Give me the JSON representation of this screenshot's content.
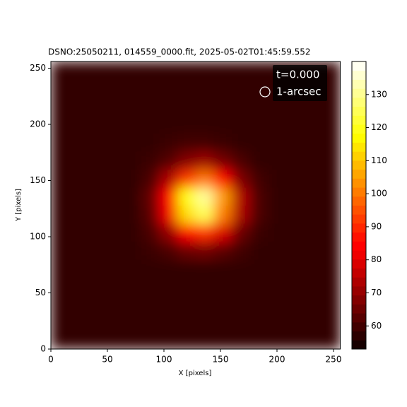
{
  "chart_data": {
    "type": "heatmap",
    "title": "DSNO:25050211,  014559_0000.fit, 2025-05-02T01:45:59.552",
    "x_label": "X [pixels]",
    "y_label": "Y [pixels]",
    "time_label": "t=0.000",
    "marker_label": "1-arcsec",
    "colormap": "hot",
    "xlim": [
      0,
      256
    ],
    "ylim": [
      0,
      256
    ],
    "xticks": [
      0,
      50,
      100,
      150,
      200,
      250
    ],
    "yticks": [
      0,
      50,
      100,
      150,
      200,
      250
    ],
    "cell_size": 16,
    "clim": [
      53,
      140
    ],
    "colorbar_ticks": [
      60,
      70,
      80,
      90,
      100,
      110,
      120,
      130
    ],
    "z": [
      [
        58,
        58,
        58,
        58,
        58,
        58,
        58,
        58,
        58,
        58,
        58,
        58,
        58,
        58,
        58,
        58
      ],
      [
        58,
        58,
        58,
        58,
        58,
        58,
        58,
        58,
        58,
        58,
        58,
        58,
        58,
        58,
        58,
        58
      ],
      [
        58,
        58,
        58,
        58,
        58,
        58,
        58,
        58,
        58,
        58,
        58,
        58,
        58,
        58,
        58,
        58
      ],
      [
        58,
        58,
        58,
        58,
        58,
        58,
        58,
        58,
        58,
        58,
        58,
        58,
        58,
        58,
        58,
        58
      ],
      [
        58,
        58,
        58,
        58,
        58,
        58,
        58,
        58,
        58,
        58,
        58,
        58,
        58,
        58,
        58,
        58
      ],
      [
        58,
        58,
        58,
        58,
        58,
        59,
        61,
        65,
        66,
        63,
        60,
        58,
        58,
        58,
        58,
        58
      ],
      [
        58,
        58,
        58,
        58,
        58,
        61,
        70,
        85,
        91,
        79,
        65,
        59,
        58,
        58,
        58,
        58
      ],
      [
        58,
        58,
        58,
        58,
        58,
        63,
        82,
        113,
        125,
        101,
        73,
        61,
        58,
        58,
        58,
        58
      ],
      [
        58,
        58,
        58,
        58,
        58,
        64,
        84,
        118,
        131,
        105,
        74,
        61,
        58,
        58,
        58,
        58
      ],
      [
        58,
        58,
        58,
        58,
        58,
        61,
        73,
        92,
        100,
        85,
        67,
        60,
        58,
        58,
        58,
        58
      ],
      [
        58,
        58,
        58,
        58,
        58,
        59,
        62,
        68,
        71,
        66,
        61,
        58,
        58,
        58,
        58,
        58
      ],
      [
        58,
        58,
        58,
        58,
        58,
        58,
        59,
        60,
        60,
        59,
        58,
        58,
        58,
        58,
        58,
        58
      ],
      [
        58,
        58,
        58,
        58,
        58,
        58,
        58,
        58,
        58,
        58,
        58,
        58,
        58,
        58,
        58,
        58
      ],
      [
        58,
        58,
        58,
        58,
        58,
        58,
        58,
        58,
        58,
        58,
        58,
        58,
        58,
        58,
        58,
        58
      ],
      [
        58,
        58,
        58,
        58,
        58,
        58,
        58,
        58,
        58,
        58,
        58,
        58,
        58,
        58,
        58,
        58
      ],
      [
        58,
        58,
        58,
        58,
        58,
        58,
        58,
        58,
        58,
        58,
        58,
        58,
        58,
        58,
        58,
        58
      ]
    ]
  }
}
